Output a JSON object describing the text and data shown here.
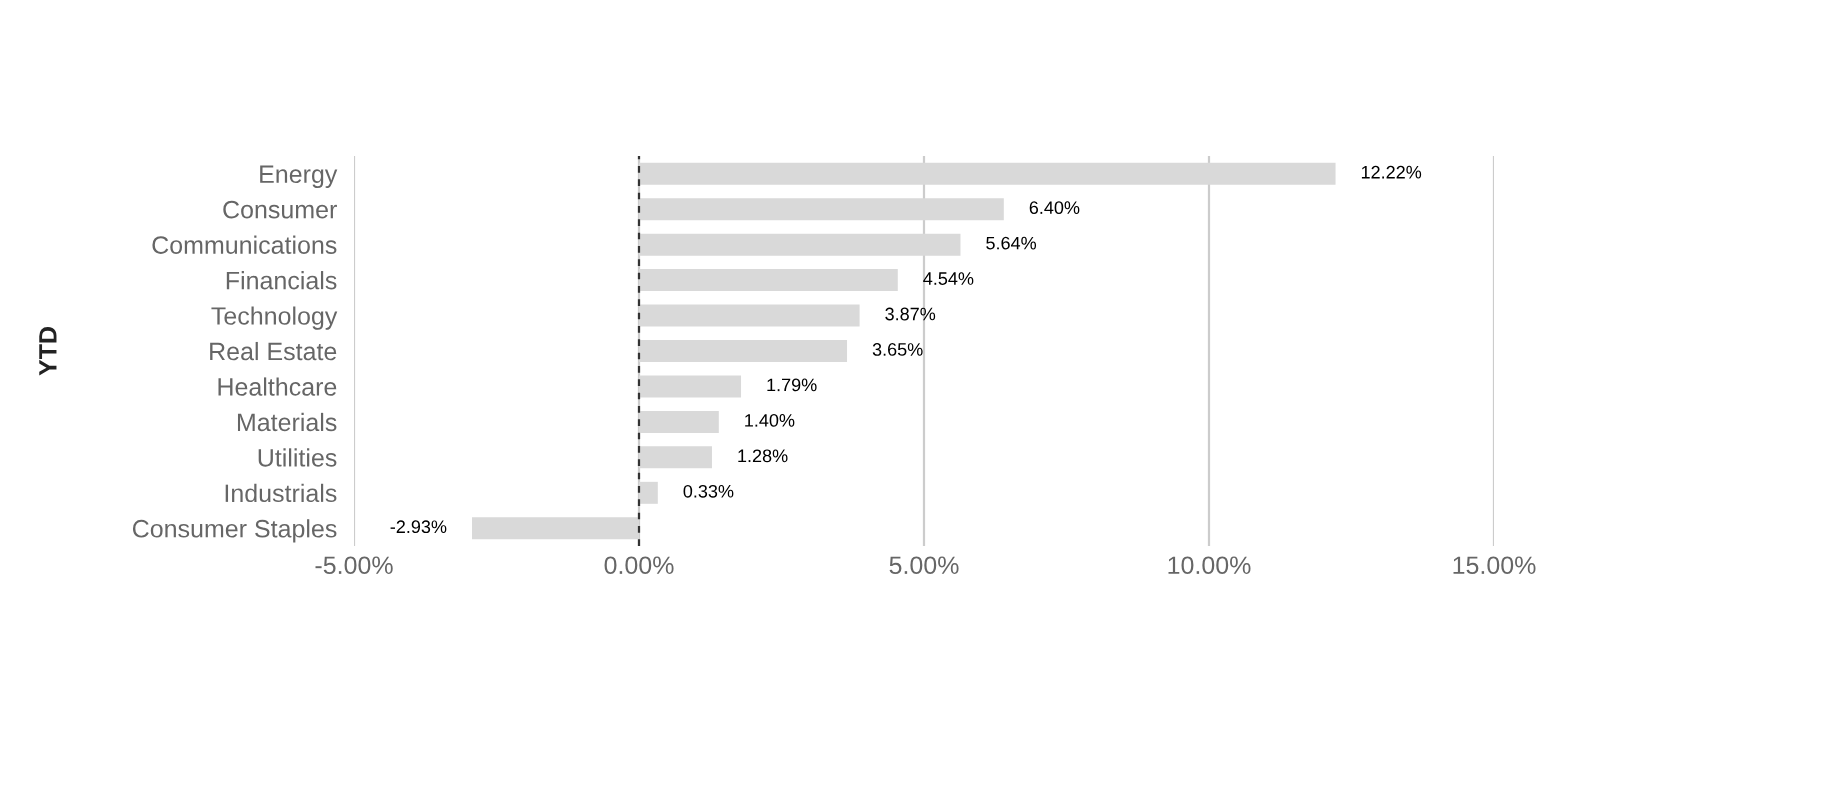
{
  "chart_data": {
    "type": "bar",
    "orientation": "horizontal",
    "ylabel": "YTD",
    "categories": [
      "Energy",
      "Consumer",
      "Communications",
      "Financials",
      "Technology",
      "Real Estate",
      "Healthcare",
      "Materials",
      "Utilities",
      "Industrials",
      "Consumer Staples"
    ],
    "values": [
      12.22,
      6.4,
      5.64,
      4.54,
      3.87,
      3.65,
      1.79,
      1.4,
      1.28,
      0.33,
      -2.93
    ],
    "value_labels": [
      "12.22%",
      "6.40%",
      "5.64%",
      "4.54%",
      "3.87%",
      "3.65%",
      "1.79%",
      "1.40%",
      "1.28%",
      "0.33%",
      "-2.93%"
    ],
    "color": "#d9d9d9",
    "xlim": [
      -5,
      15
    ],
    "xticks": [
      {
        "value": -5,
        "label": "-5.00%"
      },
      {
        "value": 0,
        "label": "0.00%"
      },
      {
        "value": 5,
        "label": "5.00%"
      },
      {
        "value": 10,
        "label": "10.00%"
      },
      {
        "value": 15,
        "label": "15.00%"
      }
    ],
    "grid": "x",
    "ref_lines": [
      {
        "axis": "x",
        "value": 0,
        "color": "#333333",
        "line_style": "dashed"
      }
    ]
  }
}
